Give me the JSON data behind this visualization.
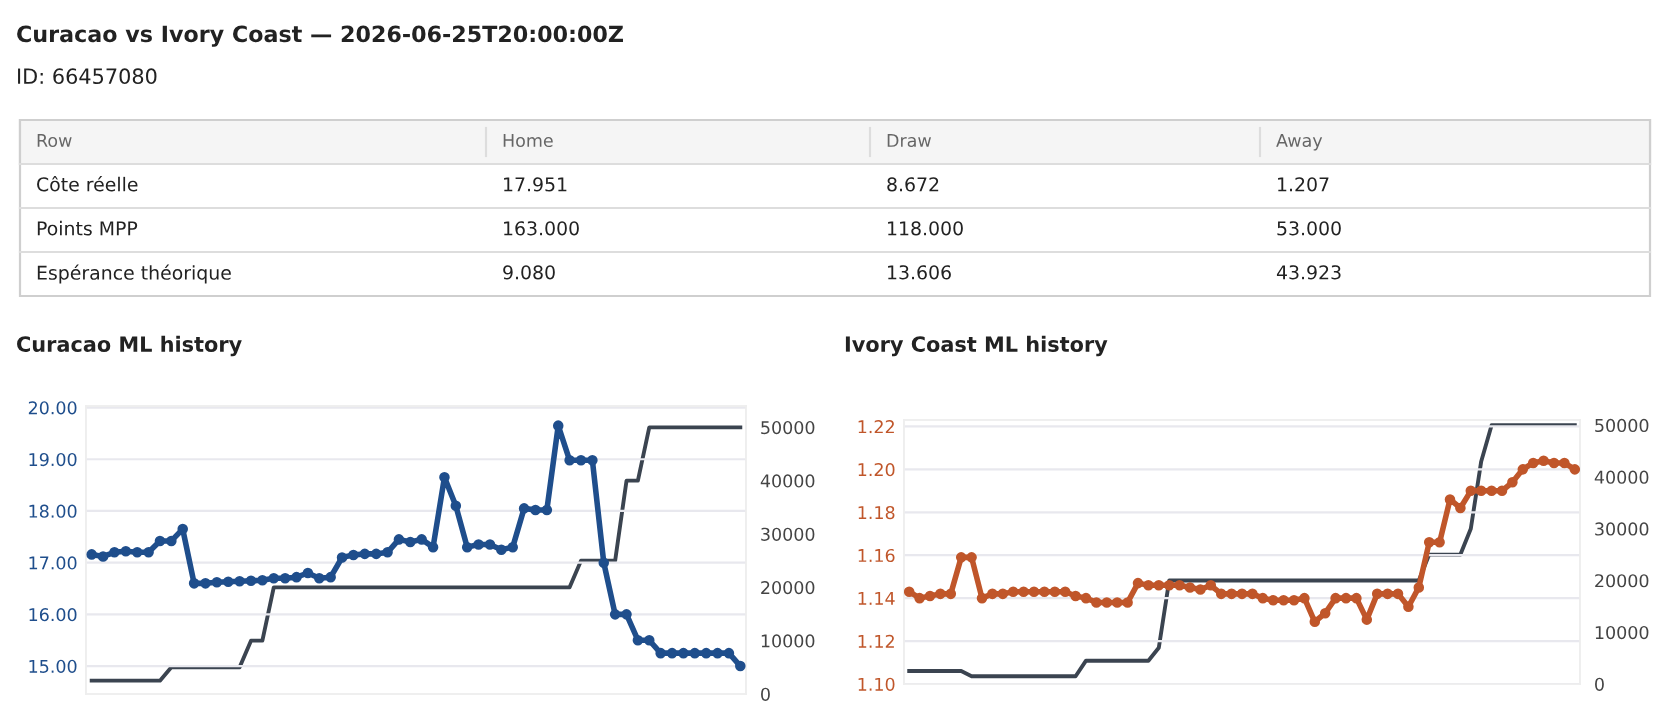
{
  "chart_data": [
    {
      "type": "other",
      "title": "Curacao vs Ivory Coast — 2026-06-25T20:00:00Z",
      "annotations": [
        "ID: 66457080",
        "Row",
        "Home",
        "Draw",
        "Away",
        "Côte réelle",
        "17.951",
        "8.672",
        "1.207",
        "Points MPP",
        "163.000",
        "118.000",
        "53.000",
        "Espérance théorique",
        "9.080",
        "13.606",
        "43.923"
      ]
    },
    {
      "type": "line",
      "title": "Curacao ML history",
      "categories": [
        null,
        null,
        null,
        null,
        null,
        null,
        null,
        null,
        null,
        null,
        null,
        null,
        null,
        null,
        null,
        null,
        null,
        null,
        null,
        null,
        null,
        null,
        null,
        null,
        null,
        null,
        null,
        null,
        null,
        null,
        null,
        null,
        null,
        null,
        null,
        null,
        null,
        null,
        null,
        null,
        null,
        null,
        null,
        null,
        null,
        null,
        null,
        null,
        null,
        null,
        null,
        null,
        null,
        null,
        null,
        null,
        null,
        null
      ],
      "series": [
        {
          "color": "#1f4e8c",
          "marker": "circle",
          "values": [
            17.16,
            17.12,
            17.2,
            17.22,
            17.2,
            17.2,
            17.42,
            17.42,
            17.65,
            16.6,
            16.6,
            16.62,
            16.63,
            16.64,
            16.65,
            16.66,
            16.7,
            16.7,
            16.72,
            16.8,
            16.7,
            16.72,
            17.1,
            17.15,
            17.17,
            17.17,
            17.2,
            17.45,
            17.4,
            17.45,
            17.3,
            18.65,
            18.1,
            17.3,
            17.35,
            17.35,
            17.25,
            17.3,
            18.05,
            18.02,
            18.02,
            19.65,
            18.98,
            18.98,
            18.98,
            17.0,
            16.0,
            16.0,
            15.5,
            15.5,
            15.25,
            15.25,
            15.25,
            15.25,
            15.25,
            15.25,
            15.25,
            15.0
          ]
        },
        {
          "color": "#3b4450",
          "marker": "none",
          "axis": "y2",
          "values": [
            2500,
            2500,
            2500,
            2500,
            2500,
            2500,
            2500,
            5000,
            5000,
            5000,
            5000,
            5000,
            5000,
            5000,
            10000,
            10000,
            20000,
            20000,
            20000,
            20000,
            20000,
            20000,
            20000,
            20000,
            20000,
            20000,
            20000,
            20000,
            20000,
            20000,
            20000,
            20000,
            20000,
            20000,
            20000,
            20000,
            20000,
            20000,
            20000,
            20000,
            20000,
            20000,
            20000,
            25000,
            25000,
            25000,
            25000,
            40000,
            40000,
            50000,
            50000,
            50000,
            50000,
            50000,
            50000,
            50000,
            50000,
            50000
          ]
        }
      ],
      "ylim": [
        14.46,
        20.03
      ],
      "yticks": [
        {
          "value": 15,
          "label": "15.00"
        },
        {
          "value": 16,
          "label": "16.00"
        },
        {
          "value": 17,
          "label": "17.00"
        },
        {
          "value": 18,
          "label": "18.00"
        },
        {
          "value": 19,
          "label": "19.00"
        },
        {
          "value": 20,
          "label": "20.00"
        }
      ],
      "y2lim": [
        0,
        54000
      ],
      "y2ticks": [
        0,
        10000,
        20000,
        30000,
        40000,
        50000
      ],
      "grid": "y",
      "line_style": "solid"
    },
    {
      "type": "line",
      "title": "Ivory Coast ML history",
      "categories": [
        null,
        null,
        null,
        null,
        null,
        null,
        null,
        null,
        null,
        null,
        null,
        null,
        null,
        null,
        null,
        null,
        null,
        null,
        null,
        null,
        null,
        null,
        null,
        null,
        null,
        null,
        null,
        null,
        null,
        null,
        null,
        null,
        null,
        null,
        null,
        null,
        null,
        null,
        null,
        null,
        null,
        null,
        null,
        null,
        null,
        null,
        null,
        null,
        null,
        null,
        null,
        null,
        null,
        null,
        null,
        null,
        null,
        null,
        null,
        null,
        null,
        null,
        null,
        null,
        null
      ],
      "series": [
        {
          "color": "#c0562a",
          "marker": "circle",
          "values": [
            1.143,
            1.14,
            1.141,
            1.142,
            1.142,
            1.159,
            1.159,
            1.14,
            1.142,
            1.142,
            1.143,
            1.143,
            1.143,
            1.143,
            1.143,
            1.143,
            1.141,
            1.14,
            1.138,
            1.138,
            1.138,
            1.138,
            1.147,
            1.146,
            1.146,
            1.146,
            1.146,
            1.145,
            1.144,
            1.146,
            1.142,
            1.142,
            1.142,
            1.142,
            1.14,
            1.139,
            1.139,
            1.139,
            1.14,
            1.129,
            1.133,
            1.14,
            1.14,
            1.14,
            1.13,
            1.142,
            1.142,
            1.142,
            1.136,
            1.145,
            1.166,
            1.166,
            1.186,
            1.182,
            1.19,
            1.19,
            1.19,
            1.19,
            1.194,
            1.2,
            1.203,
            1.204,
            1.203,
            1.203,
            1.2
          ]
        },
        {
          "color": "#3b4450",
          "marker": "none",
          "axis": "y2",
          "values": [
            2500,
            2500,
            2500,
            2500,
            2500,
            2500,
            1500,
            1500,
            1500,
            1500,
            1500,
            1500,
            1500,
            1500,
            1500,
            1500,
            1500,
            4500,
            4500,
            4500,
            4500,
            4500,
            4500,
            4500,
            7000,
            20000,
            20000,
            20000,
            20000,
            20000,
            20000,
            20000,
            20000,
            20000,
            20000,
            20000,
            20000,
            20000,
            20000,
            20000,
            20000,
            20000,
            20000,
            20000,
            20000,
            20000,
            20000,
            20000,
            20000,
            20000,
            25000,
            25000,
            25000,
            25000,
            30000,
            43000,
            50000,
            50000,
            50000,
            50000,
            50000,
            50000,
            50000,
            50000,
            50000
          ]
        }
      ],
      "ylim": [
        1.1,
        1.223
      ],
      "yticks": [
        {
          "value": 1.1,
          "label": "1.10"
        },
        {
          "value": 1.12,
          "label": "1.12"
        },
        {
          "value": 1.14,
          "label": "1.14"
        },
        {
          "value": 1.16,
          "label": "1.16"
        },
        {
          "value": 1.18,
          "label": "1.18"
        },
        {
          "value": 1.2,
          "label": "1.20"
        },
        {
          "value": 1.22,
          "label": "1.22"
        }
      ],
      "y2lim": [
        0,
        51000
      ],
      "y2ticks": [
        0,
        10000,
        20000,
        30000,
        40000,
        50000
      ],
      "grid": "y",
      "line_style": "solid"
    }
  ]
}
